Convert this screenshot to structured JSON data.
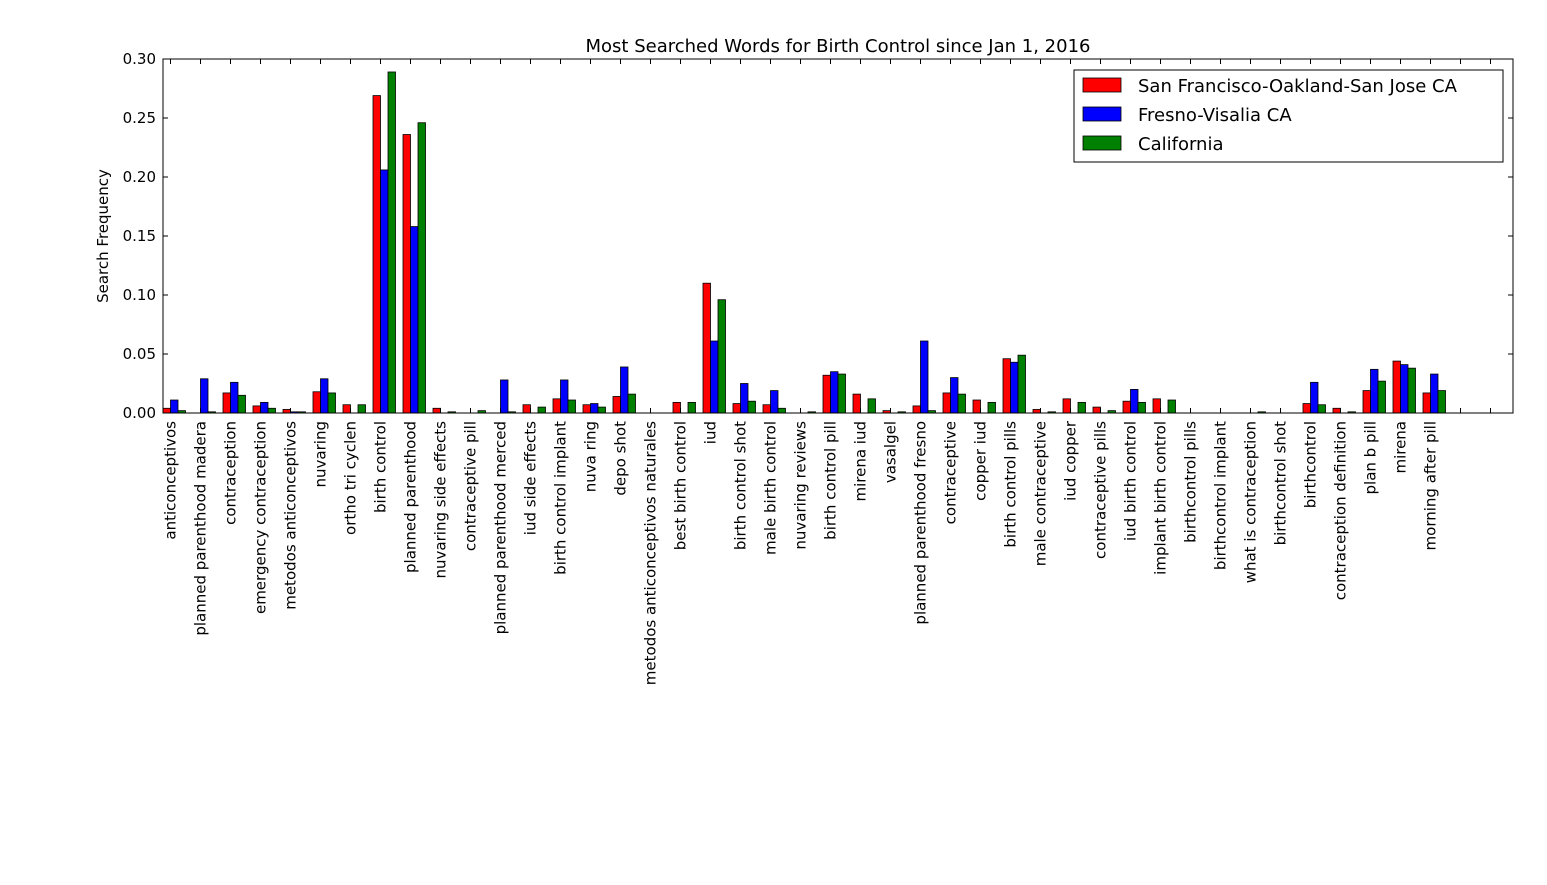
{
  "chart_data": {
    "type": "bar",
    "title": "Most Searched Words for Birth Control since Jan 1, 2016",
    "xlabel": "",
    "ylabel": "Search Frequency",
    "ylim": [
      0,
      0.3
    ],
    "yticks": [
      "0.00",
      "0.05",
      "0.10",
      "0.15",
      "0.20",
      "0.25",
      "0.30"
    ],
    "grid": false,
    "legend_position": "top-right",
    "categories": [
      "anticonceptivos",
      "planned parenthood madera",
      "contraception",
      "emergency contraception",
      "metodos anticonceptivos",
      "nuvaring",
      "ortho tri cyclen",
      "birth control",
      "planned parenthood",
      "nuvaring side effects",
      "contraceptive pill",
      "planned parenthood merced",
      "iud side effects",
      "birth control implant",
      "nuva ring",
      "depo shot",
      "metodos anticonceptivos naturales",
      "best birth control",
      "iud",
      "birth control shot",
      "male birth control",
      "nuvaring reviews",
      "birth control pill",
      "mirena iud",
      "vasalgel",
      "planned parenthood fresno",
      "contraceptive",
      "copper iud",
      "birth control pills",
      "male contraceptive",
      "iud copper",
      "contraceptive pills",
      "iud birth control",
      "implant birth control",
      "birthcontrol pills",
      "birthcontrol implant",
      "what is contraception",
      "birthcontrol shot",
      "birthcontrol",
      "contraception definition",
      "plan b pill",
      "mirena",
      "morning after pill"
    ],
    "series": [
      {
        "name": "San Francisco-Oakland-San Jose CA",
        "color": "#ff0000",
        "values": [
          0.004,
          0.0,
          0.017,
          0.006,
          0.003,
          0.018,
          0.007,
          0.269,
          0.236,
          0.004,
          0.0,
          0.0,
          0.007,
          0.012,
          0.007,
          0.014,
          0.0,
          0.009,
          0.11,
          0.008,
          0.007,
          0.0,
          0.032,
          0.016,
          0.002,
          0.006,
          0.017,
          0.011,
          0.046,
          0.003,
          0.012,
          0.005,
          0.01,
          0.012,
          0.0,
          0.0,
          0.0,
          0.0,
          0.008,
          0.004,
          0.019,
          0.044,
          0.017
        ]
      },
      {
        "name": "Fresno-Visalia CA",
        "color": "#0000ff",
        "values": [
          0.011,
          0.029,
          0.026,
          0.009,
          0.001,
          0.029,
          0.0,
          0.206,
          0.158,
          0.0,
          0.0,
          0.028,
          0.0,
          0.028,
          0.008,
          0.039,
          0.0,
          0.0,
          0.061,
          0.025,
          0.019,
          0.0,
          0.035,
          0.0,
          0.0,
          0.061,
          0.03,
          0.0,
          0.043,
          0.0,
          0.0,
          0.0,
          0.02,
          0.0,
          0.0,
          0.0,
          0.0,
          0.0,
          0.026,
          0.0,
          0.037,
          0.041,
          0.033
        ]
      },
      {
        "name": "California",
        "color": "#008000",
        "values": [
          0.002,
          0.001,
          0.015,
          0.004,
          0.001,
          0.017,
          0.007,
          0.289,
          0.246,
          0.001,
          0.002,
          0.001,
          0.005,
          0.011,
          0.005,
          0.016,
          0.0,
          0.009,
          0.096,
          0.01,
          0.004,
          0.001,
          0.033,
          0.012,
          0.001,
          0.002,
          0.016,
          0.009,
          0.049,
          0.001,
          0.009,
          0.002,
          0.009,
          0.011,
          0.0,
          0.0,
          0.001,
          0.0,
          0.007,
          0.001,
          0.027,
          0.038,
          0.019
        ]
      }
    ]
  }
}
